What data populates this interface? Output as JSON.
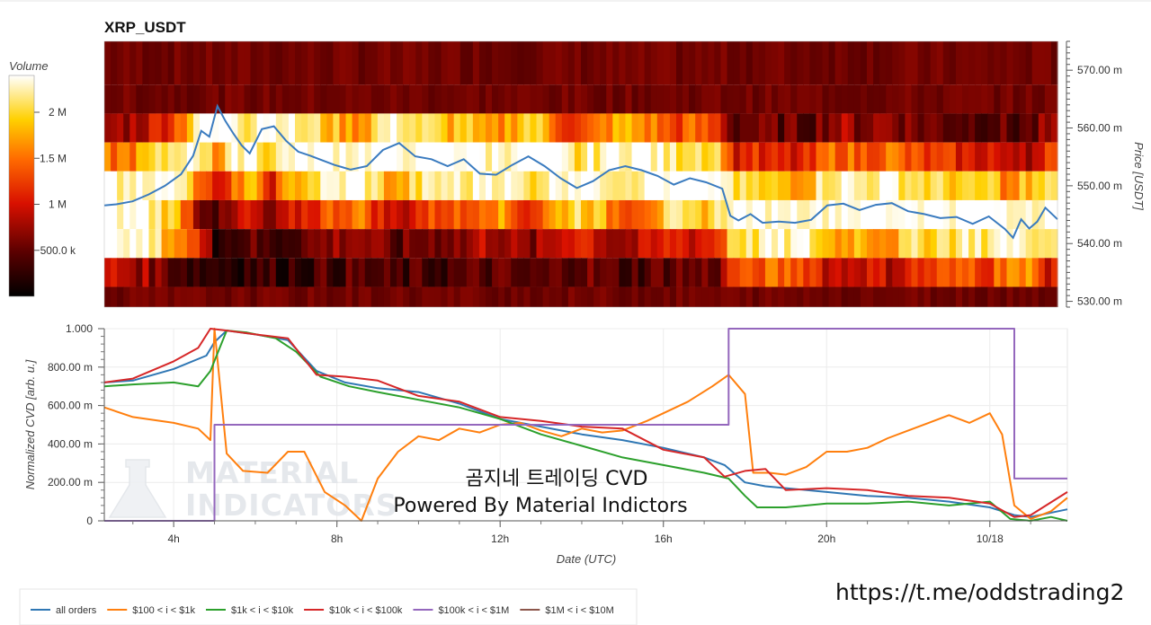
{
  "watermark": "MATERIAL INDICATORS",
  "overlay": {
    "line1": "곰지네 트레이딩 CVD",
    "line2": "Powered By Material Indictors",
    "link": "https://t.me/oddstrading2"
  },
  "chart_data": [
    {
      "type": "heatmap",
      "title": "XRP_USDT",
      "colorbar_title": "Volume",
      "colorbar_ticks": [
        "500.0 k",
        "1 M",
        "1.5 M",
        "2 M"
      ],
      "colorbar_values": [
        500000,
        1000000,
        1500000,
        2000000
      ],
      "colorbar_range": [
        0,
        2400000
      ],
      "ylabel": "Price [USDT]",
      "y_ticks": [
        "530.00 m",
        "540.00 m",
        "550.00 m",
        "560.00 m",
        "570.00 m"
      ],
      "y_tick_values": [
        530,
        540,
        550,
        560,
        570
      ],
      "ylim": [
        529,
        575
      ],
      "price_bands": [
        570,
        565,
        560,
        555,
        550,
        545,
        540,
        535,
        530
      ],
      "x_range_hours": [
        2.3,
        25.9
      ],
      "price_series": {
        "name": "price",
        "x": [
          2.3,
          2.6,
          3.0,
          3.4,
          3.8,
          4.2,
          4.5,
          4.7,
          4.9,
          5.1,
          5.3,
          5.5,
          5.7,
          5.9,
          6.2,
          6.5,
          6.8,
          7.1,
          7.4,
          7.7,
          8.0,
          8.4,
          8.8,
          9.2,
          9.6,
          10.0,
          10.4,
          10.8,
          11.2,
          11.6,
          12.0,
          12.4,
          12.8,
          13.2,
          13.6,
          14.0,
          14.4,
          14.8,
          15.2,
          15.6,
          16.0,
          16.4,
          16.8,
          17.2,
          17.6,
          17.8,
          18.0,
          18.3,
          18.6,
          19.0,
          19.4,
          19.8,
          20.2,
          20.6,
          21.0,
          21.4,
          21.8,
          22.2,
          22.6,
          23.0,
          23.4,
          23.8,
          24.2,
          24.6,
          24.8,
          25.0,
          25.2,
          25.4,
          25.6,
          25.9
        ],
        "y": [
          546.6,
          546.8,
          547.3,
          548.5,
          550.0,
          552.0,
          555.2,
          559.5,
          558.5,
          563.8,
          561.2,
          559.0,
          557.0,
          555.6,
          559.8,
          560.3,
          557.8,
          555.9,
          555.2,
          554.4,
          553.6,
          552.8,
          553.4,
          556.2,
          557.4,
          555.1,
          554.6,
          553.4,
          554.6,
          552.1,
          551.9,
          553.6,
          555.1,
          553.4,
          551.3,
          549.6,
          550.8,
          552.7,
          553.4,
          552.7,
          551.7,
          550.2,
          551.3,
          550.6,
          549.5,
          544.8,
          544.0,
          545.1,
          543.6,
          543.8,
          543.6,
          544.1,
          546.6,
          546.9,
          545.8,
          546.7,
          547.0,
          545.6,
          545.1,
          544.4,
          544.6,
          543.4,
          544.7,
          542.5,
          541.0,
          544.2,
          542.6,
          543.8,
          546.2,
          544.2
        ]
      }
    },
    {
      "type": "line",
      "xlabel": "Date (UTC)",
      "ylabel": "Normalized CVD [arb. u.]",
      "x_ticks": [
        "4h",
        "8h",
        "12h",
        "16h",
        "20h",
        "10/18"
      ],
      "x_tick_values": [
        4,
        8,
        12,
        16,
        20,
        24
      ],
      "xlim": [
        2.3,
        25.9
      ],
      "y_ticks": [
        "0",
        "200.00 m",
        "400.00 m",
        "600.00 m",
        "800.00 m",
        "1.000"
      ],
      "y_tick_values": [
        0,
        0.2,
        0.4,
        0.6,
        0.8,
        1.0
      ],
      "ylim": [
        0,
        1.0
      ],
      "legend_position": "bottom-left",
      "series": [
        {
          "name": "all orders",
          "color": "#2f77b4",
          "x": [
            2.3,
            3.0,
            4.0,
            4.8,
            5.0,
            5.3,
            6.0,
            6.8,
            7.5,
            8.2,
            9.0,
            10.0,
            11.0,
            12.0,
            13.0,
            14.0,
            15.0,
            16.0,
            17.0,
            17.5,
            18.0,
            18.5,
            19.0,
            20.0,
            21.0,
            22.0,
            23.0,
            24.0,
            24.6,
            25.0,
            25.9
          ],
          "y": [
            0.72,
            0.73,
            0.79,
            0.86,
            0.93,
            0.99,
            0.97,
            0.94,
            0.78,
            0.72,
            0.69,
            0.67,
            0.61,
            0.53,
            0.49,
            0.45,
            0.42,
            0.38,
            0.33,
            0.29,
            0.2,
            0.18,
            0.17,
            0.15,
            0.13,
            0.12,
            0.1,
            0.07,
            0.03,
            0.02,
            0.06
          ]
        },
        {
          "name": "$100 < i < $1k",
          "color": "#ff7f0e",
          "x": [
            2.3,
            3.0,
            4.0,
            4.6,
            4.9,
            5.0,
            5.3,
            5.7,
            6.3,
            6.8,
            7.2,
            7.7,
            8.2,
            8.6,
            9.0,
            9.5,
            10.0,
            10.5,
            11.0,
            11.5,
            12.0,
            12.5,
            13.0,
            13.5,
            14.0,
            14.5,
            15.0,
            15.6,
            16.0,
            16.6,
            17.2,
            17.6,
            18.0,
            18.2,
            18.6,
            19.0,
            19.5,
            20.0,
            20.5,
            21.0,
            21.5,
            22.0,
            22.5,
            23.0,
            23.5,
            24.0,
            24.3,
            24.6,
            25.0,
            25.5,
            25.9
          ],
          "y": [
            0.59,
            0.54,
            0.51,
            0.48,
            0.42,
            1.0,
            0.35,
            0.26,
            0.25,
            0.36,
            0.36,
            0.15,
            0.08,
            0.0,
            0.22,
            0.36,
            0.44,
            0.42,
            0.48,
            0.46,
            0.5,
            0.51,
            0.47,
            0.44,
            0.48,
            0.46,
            0.47,
            0.52,
            0.56,
            0.62,
            0.7,
            0.76,
            0.66,
            0.25,
            0.25,
            0.24,
            0.28,
            0.36,
            0.36,
            0.38,
            0.43,
            0.47,
            0.51,
            0.55,
            0.51,
            0.56,
            0.45,
            0.08,
            0.01,
            0.05,
            0.12
          ]
        },
        {
          "name": "$1k < i < $10k",
          "color": "#2ca02c",
          "x": [
            2.3,
            3.0,
            4.0,
            4.6,
            4.9,
            5.3,
            5.8,
            6.5,
            7.0,
            7.6,
            8.3,
            9.0,
            10.0,
            11.0,
            12.0,
            13.0,
            14.0,
            15.0,
            16.0,
            17.0,
            17.6,
            18.0,
            18.3,
            19.0,
            20.0,
            21.0,
            22.0,
            23.0,
            24.0,
            24.5,
            25.0,
            25.5,
            25.9
          ],
          "y": [
            0.7,
            0.71,
            0.72,
            0.7,
            0.78,
            0.99,
            0.98,
            0.95,
            0.88,
            0.75,
            0.7,
            0.67,
            0.63,
            0.59,
            0.53,
            0.45,
            0.39,
            0.33,
            0.29,
            0.25,
            0.22,
            0.13,
            0.07,
            0.07,
            0.09,
            0.09,
            0.1,
            0.08,
            0.1,
            0.01,
            0.0,
            0.02,
            0.0
          ]
        },
        {
          "name": "$10k < i < $100k",
          "color": "#d62728",
          "x": [
            2.3,
            3.0,
            4.0,
            4.6,
            4.9,
            5.3,
            6.0,
            6.8,
            7.5,
            8.2,
            9.0,
            10.0,
            11.0,
            12.0,
            13.0,
            14.0,
            15.0,
            16.0,
            17.0,
            17.5,
            18.0,
            18.5,
            19.0,
            20.0,
            21.0,
            22.0,
            23.0,
            24.0,
            24.6,
            25.0,
            25.9
          ],
          "y": [
            0.72,
            0.74,
            0.83,
            0.9,
            1.0,
            0.99,
            0.97,
            0.95,
            0.76,
            0.75,
            0.73,
            0.65,
            0.62,
            0.54,
            0.52,
            0.49,
            0.48,
            0.37,
            0.33,
            0.23,
            0.26,
            0.27,
            0.16,
            0.17,
            0.16,
            0.13,
            0.12,
            0.09,
            0.02,
            0.03,
            0.15
          ]
        },
        {
          "name": "$100k < i < $1M",
          "color": "#9467bd",
          "x": [
            2.3,
            5.0,
            5.0,
            17.6,
            17.6,
            24.6,
            24.6,
            25.9
          ],
          "y": [
            0.0,
            0.0,
            0.5,
            0.5,
            1.0,
            1.0,
            0.22,
            0.22
          ]
        },
        {
          "name": "$1M < i < $10M",
          "color": "#8c564b",
          "x": [],
          "y": []
        }
      ]
    }
  ]
}
